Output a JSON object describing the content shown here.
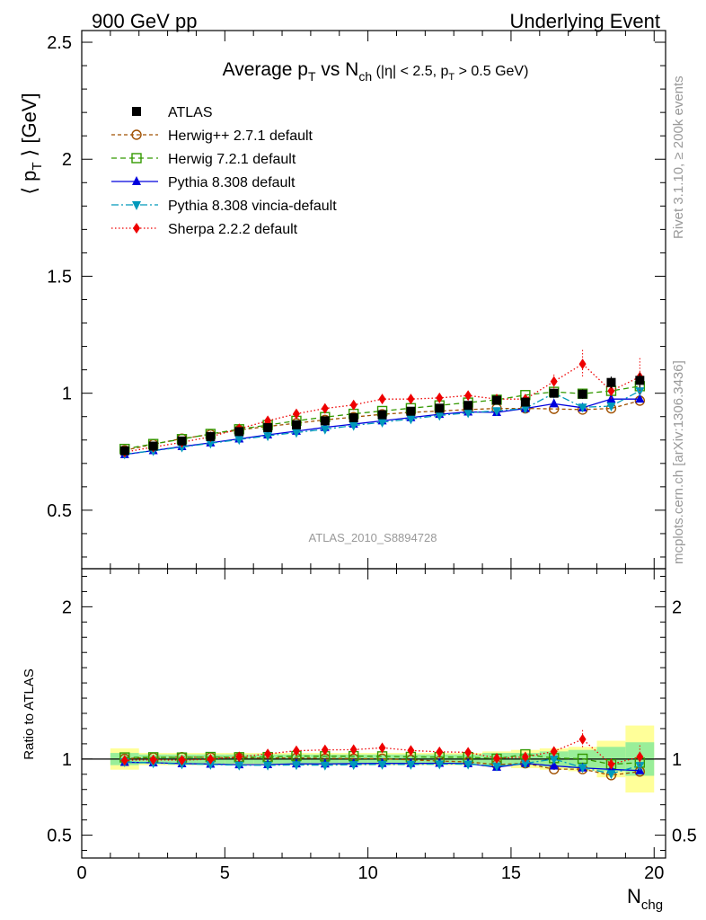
{
  "header": {
    "left": "900 GeV pp",
    "right": "Underlying Event"
  },
  "side_labels": {
    "rivet": "Rivet 3.1.10, ≥ 200k events",
    "mcplots": "mcplots.cern.ch [arXiv:1306.3436]"
  },
  "watermark": "ATLAS_2010_S8894728",
  "chart_data": {
    "type": "line",
    "title_parts": {
      "a": "Average p",
      "a_sub": "T",
      "b": " vs N",
      "b_sub": "ch",
      "c": " (|η| < 2.5, p",
      "c_sub": "T",
      "d": " > 0.5 GeV)"
    },
    "ylabel_parts": {
      "a": "⟨ p",
      "sub": "T",
      "b": " ⟩ [GeV]"
    },
    "xlabel_parts": {
      "a": "N",
      "sub": "chg"
    },
    "ratio_ylabel": "Ratio to ATLAS",
    "xlim": [
      0,
      20.4
    ],
    "ylim": [
      0.25,
      2.55
    ],
    "ratio_ylim": [
      0.35,
      2.25
    ],
    "x_ticks": [
      "0",
      "5",
      "10",
      "15",
      "20"
    ],
    "y_ticks": [
      "0.5",
      "1",
      "1.5",
      "2",
      "2.5"
    ],
    "ratio_ticks": [
      "0.5",
      "1",
      "2"
    ],
    "x": [
      1.5,
      2.5,
      3.5,
      4.5,
      5.5,
      6.5,
      7.5,
      8.5,
      9.5,
      10.5,
      11.5,
      12.5,
      13.5,
      14.5,
      15.5,
      16.5,
      17.5,
      18.5,
      19.5
    ],
    "data": {
      "name": "ATLAS",
      "values": [
        0.754,
        0.774,
        0.796,
        0.815,
        0.836,
        0.853,
        0.865,
        0.882,
        0.895,
        0.908,
        0.923,
        0.936,
        0.948,
        0.97,
        0.962,
        1.0,
        0.996,
        1.046,
        1.055
      ],
      "err": [
        0.005,
        0.005,
        0.005,
        0.005,
        0.006,
        0.006,
        0.006,
        0.007,
        0.007,
        0.008,
        0.008,
        0.009,
        0.01,
        0.012,
        0.014,
        0.018,
        0.02,
        0.025,
        0.03
      ]
    },
    "ratio_band_inner": [
      0.04,
      0.03,
      0.03,
      0.03,
      0.03,
      0.03,
      0.03,
      0.03,
      0.03,
      0.03,
      0.03,
      0.03,
      0.03,
      0.04,
      0.04,
      0.05,
      0.06,
      0.08,
      0.11
    ],
    "ratio_band_outer": [
      0.07,
      0.04,
      0.04,
      0.04,
      0.04,
      0.04,
      0.04,
      0.04,
      0.04,
      0.04,
      0.04,
      0.04,
      0.04,
      0.05,
      0.06,
      0.07,
      0.08,
      0.12,
      0.22
    ],
    "series": [
      {
        "name": "Herwig++ 2.7.1 default",
        "color": "#a05000",
        "dash": "4,3",
        "marker": "circle-open",
        "values": [
          0.756,
          0.782,
          0.806,
          0.824,
          0.843,
          0.858,
          0.872,
          0.886,
          0.898,
          0.91,
          0.918,
          0.924,
          0.93,
          0.935,
          0.935,
          0.933,
          0.93,
          0.935,
          0.968
        ]
      },
      {
        "name": "Herwig 7.2.1 default",
        "color": "#339900",
        "dash": "6,4",
        "marker": "square-open",
        "values": [
          0.762,
          0.783,
          0.804,
          0.826,
          0.846,
          0.864,
          0.882,
          0.898,
          0.912,
          0.924,
          0.936,
          0.948,
          0.96,
          0.972,
          0.992,
          1.006,
          0.998,
          1.01,
          1.03
        ]
      },
      {
        "name": "Pythia 8.308 default",
        "color": "#0000dd",
        "dash": "",
        "marker": "triangle-up",
        "values": [
          0.738,
          0.755,
          0.772,
          0.788,
          0.805,
          0.822,
          0.838,
          0.854,
          0.868,
          0.882,
          0.896,
          0.91,
          0.92,
          0.918,
          0.935,
          0.955,
          0.938,
          0.975,
          0.975
        ]
      },
      {
        "name": "Pythia 8.308 vincia-default",
        "color": "#0099bb",
        "dash": "8,3,2,3",
        "marker": "triangle-down",
        "values": [
          0.74,
          0.754,
          0.77,
          0.786,
          0.802,
          0.818,
          0.832,
          0.846,
          0.862,
          0.876,
          0.89,
          0.905,
          0.916,
          0.925,
          0.935,
          1.0,
          0.94,
          0.945,
          1.01
        ]
      },
      {
        "name": "Sherpa 2.2.2 default",
        "color": "#ee0000",
        "dash": "1.5,2.5",
        "marker": "diamond",
        "values": [
          0.748,
          0.77,
          0.79,
          0.814,
          0.848,
          0.882,
          0.912,
          0.935,
          0.95,
          0.975,
          0.975,
          0.98,
          0.99,
          0.975,
          0.975,
          1.05,
          1.125,
          1.01,
          1.07
        ],
        "err": [
          0.006,
          0.006,
          0.006,
          0.007,
          0.008,
          0.009,
          0.01,
          0.011,
          0.012,
          0.012,
          0.013,
          0.014,
          0.015,
          0.016,
          0.018,
          0.03,
          0.06,
          0.04,
          0.08
        ]
      }
    ]
  }
}
